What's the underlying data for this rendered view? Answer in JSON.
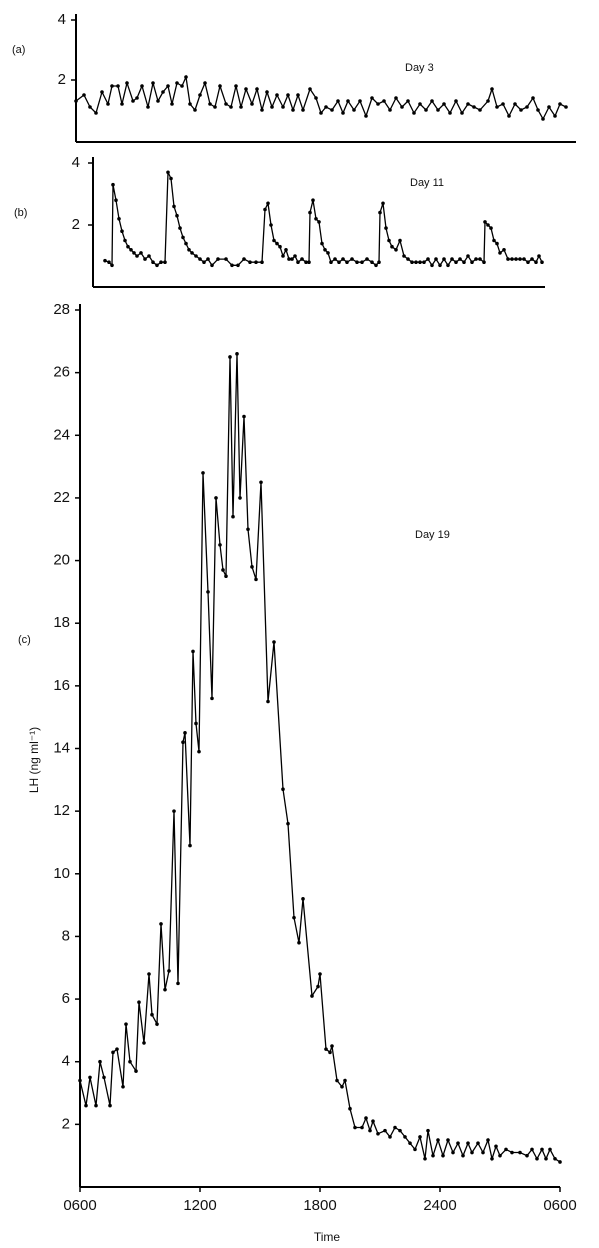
{
  "chart_data": [
    {
      "type": "line",
      "panel_label": "(a)",
      "annotation": "Day 3",
      "color": "#000000",
      "markers": true,
      "xlim": [
        6,
        31
      ],
      "ylim": [
        0,
        4
      ],
      "yticks": [
        2,
        4
      ],
      "x": [
        6.0,
        6.4,
        6.7,
        7.0,
        7.3,
        7.6,
        7.8,
        8.1,
        8.3,
        8.55,
        8.85,
        9.05,
        9.3,
        9.6,
        9.85,
        10.1,
        10.35,
        10.6,
        10.8,
        11.05,
        11.3,
        11.5,
        11.7,
        11.95,
        12.2,
        12.45,
        12.7,
        12.95,
        13.2,
        13.5,
        13.75,
        14.0,
        14.25,
        14.5,
        14.8,
        15.05,
        15.3,
        15.55,
        15.8,
        16.05,
        16.35,
        16.6,
        16.85,
        17.1,
        17.35,
        17.7,
        18.0,
        18.25,
        18.5,
        18.8,
        19.1,
        19.35,
        19.6,
        19.9,
        20.2,
        20.5,
        20.8,
        21.1,
        21.4,
        21.7,
        22.0,
        22.3,
        22.6,
        22.9,
        23.2,
        23.5,
        23.8,
        24.1,
        24.4,
        24.7,
        25.0,
        25.3,
        25.6,
        25.9,
        26.2,
        26.6,
        26.8,
        27.05,
        27.35,
        27.65,
        27.95,
        28.25,
        28.55,
        28.85,
        29.1,
        29.35,
        29.65,
        29.95,
        30.2,
        30.5
      ],
      "values": [
        1.3,
        1.5,
        1.1,
        0.9,
        1.6,
        1.2,
        1.8,
        1.8,
        1.2,
        1.9,
        1.3,
        1.4,
        1.8,
        1.1,
        1.9,
        1.3,
        1.6,
        1.8,
        1.2,
        1.9,
        1.8,
        2.1,
        1.2,
        1.0,
        1.5,
        1.9,
        1.2,
        1.1,
        1.8,
        1.2,
        1.1,
        1.8,
        1.1,
        1.7,
        1.2,
        1.7,
        1.0,
        1.6,
        1.1,
        1.5,
        1.1,
        1.5,
        1.0,
        1.5,
        1.0,
        1.7,
        1.4,
        0.9,
        1.1,
        1.0,
        1.3,
        0.9,
        1.3,
        1.0,
        1.3,
        0.8,
        1.4,
        1.2,
        1.3,
        1.0,
        1.4,
        1.1,
        1.3,
        0.9,
        1.2,
        1.0,
        1.3,
        1.0,
        1.2,
        0.9,
        1.3,
        0.9,
        1.2,
        1.1,
        1.0,
        1.3,
        1.7,
        1.1,
        1.2,
        0.8,
        1.2,
        1.0,
        1.1,
        1.4,
        1.0,
        0.7,
        1.1,
        0.8,
        1.2,
        1.1
      ]
    },
    {
      "type": "line",
      "panel_label": "(b)",
      "annotation": "Day 11",
      "color": "#000000",
      "markers": true,
      "xlim": [
        6,
        28.6
      ],
      "ylim": [
        0,
        4
      ],
      "yticks": [
        2,
        4
      ],
      "x": [
        6.6,
        6.8,
        6.95,
        7.0,
        7.15,
        7.3,
        7.45,
        7.6,
        7.75,
        7.9,
        8.05,
        8.2,
        8.4,
        8.6,
        8.8,
        9.0,
        9.2,
        9.4,
        9.6,
        9.75,
        9.9,
        10.05,
        10.2,
        10.35,
        10.5,
        10.65,
        10.8,
        10.95,
        11.15,
        11.35,
        11.55,
        11.75,
        11.95,
        12.25,
        12.65,
        12.95,
        13.25,
        13.55,
        13.85,
        14.15,
        14.45,
        14.6,
        14.75,
        14.9,
        15.05,
        15.2,
        15.35,
        15.5,
        15.65,
        15.8,
        15.95,
        16.1,
        16.25,
        16.45,
        16.65,
        16.8,
        16.85,
        17.0,
        17.15,
        17.3,
        17.45,
        17.6,
        17.75,
        17.9,
        18.1,
        18.3,
        18.5,
        18.7,
        18.95,
        19.2,
        19.45,
        19.7,
        19.95,
        20.15,
        20.3,
        20.35,
        20.5,
        20.65,
        20.8,
        20.95,
        21.15,
        21.35,
        21.55,
        21.75,
        21.95,
        22.15,
        22.35,
        22.55,
        22.75,
        22.95,
        23.15,
        23.35,
        23.55,
        23.75,
        23.95,
        24.15,
        24.35,
        24.55,
        24.75,
        24.95,
        25.15,
        25.35,
        25.55,
        25.6,
        25.75,
        25.9,
        26.05,
        26.2,
        26.35,
        26.55,
        26.75,
        26.95,
        27.15,
        27.35,
        27.55,
        27.75,
        27.95,
        28.15,
        28.3,
        28.45
      ],
      "values": [
        0.85,
        0.8,
        0.7,
        3.3,
        2.8,
        2.2,
        1.8,
        1.5,
        1.3,
        1.2,
        1.1,
        1.0,
        1.1,
        0.9,
        1.0,
        0.8,
        0.7,
        0.8,
        0.8,
        3.7,
        3.5,
        2.6,
        2.3,
        1.9,
        1.6,
        1.4,
        1.2,
        1.1,
        1.0,
        0.9,
        0.8,
        0.9,
        0.7,
        0.9,
        0.9,
        0.7,
        0.7,
        0.9,
        0.8,
        0.8,
        0.8,
        2.5,
        2.7,
        2.0,
        1.5,
        1.4,
        1.3,
        1.0,
        1.2,
        0.9,
        0.9,
        1.0,
        0.8,
        0.9,
        0.8,
        0.8,
        2.4,
        2.8,
        2.2,
        2.1,
        1.4,
        1.2,
        1.1,
        0.8,
        0.9,
        0.8,
        0.9,
        0.8,
        0.9,
        0.8,
        0.8,
        0.9,
        0.8,
        0.7,
        0.8,
        2.4,
        2.7,
        1.9,
        1.5,
        1.3,
        1.2,
        1.5,
        1.0,
        0.9,
        0.8,
        0.8,
        0.8,
        0.8,
        0.9,
        0.7,
        0.9,
        0.7,
        0.9,
        0.7,
        0.9,
        0.8,
        0.9,
        0.8,
        1.0,
        0.8,
        0.9,
        0.9,
        0.8,
        2.1,
        2.0,
        1.9,
        1.5,
        1.4,
        1.1,
        1.2,
        0.9,
        0.9,
        0.9,
        0.9,
        0.9,
        0.8,
        0.9,
        0.8,
        1.0,
        0.8
      ]
    },
    {
      "type": "line",
      "panel_label": "(c)",
      "annotation": "Day 19",
      "color": "#000000",
      "markers": true,
      "ylabel": "LH (ng ml⁻¹)",
      "xlabel": "Time",
      "xlim": [
        6,
        30
      ],
      "ylim": [
        0,
        28
      ],
      "yticks": [
        2,
        4,
        6,
        8,
        10,
        12,
        14,
        16,
        18,
        20,
        22,
        24,
        26,
        28
      ],
      "xticks": [
        {
          "value": 6,
          "label": "0600"
        },
        {
          "value": 12,
          "label": "1200"
        },
        {
          "value": 18,
          "label": "1800"
        },
        {
          "value": 24,
          "label": "2400"
        },
        {
          "value": 30,
          "label": "0600"
        }
      ],
      "x": [
        6.0,
        6.3,
        6.5,
        6.8,
        7.0,
        7.2,
        7.5,
        7.65,
        7.85,
        8.15,
        8.3,
        8.5,
        8.8,
        8.95,
        9.2,
        9.45,
        9.6,
        9.85,
        10.05,
        10.25,
        10.45,
        10.7,
        10.9,
        11.15,
        11.25,
        11.5,
        11.65,
        11.8,
        11.95,
        12.15,
        12.4,
        12.6,
        12.8,
        13.0,
        13.15,
        13.3,
        13.5,
        13.65,
        13.85,
        14.0,
        14.2,
        14.4,
        14.6,
        14.8,
        15.05,
        15.4,
        15.7,
        16.15,
        16.4,
        16.7,
        16.95,
        17.15,
        17.6,
        17.9,
        18.0,
        18.3,
        18.5,
        18.6,
        18.85,
        19.1,
        19.25,
        19.5,
        19.75,
        20.1,
        20.3,
        20.5,
        20.65,
        20.9,
        21.25,
        21.5,
        21.75,
        22.0,
        22.25,
        22.5,
        22.75,
        23.0,
        23.25,
        23.4,
        23.65,
        23.9,
        24.15,
        24.4,
        24.65,
        24.9,
        25.15,
        25.4,
        25.6,
        25.9,
        26.15,
        26.4,
        26.6,
        26.8,
        27.0,
        27.3,
        27.6,
        28.0,
        28.35,
        28.6,
        28.85,
        29.1,
        29.3,
        29.5,
        29.75,
        30.0
      ],
      "values": [
        3.4,
        2.6,
        3.5,
        2.6,
        4.0,
        3.5,
        2.6,
        4.3,
        4.4,
        3.2,
        5.2,
        4.0,
        3.7,
        5.9,
        4.6,
        6.8,
        5.5,
        5.2,
        8.4,
        6.3,
        6.9,
        12.0,
        6.5,
        14.2,
        14.5,
        10.9,
        17.1,
        14.8,
        13.9,
        22.8,
        19.0,
        15.6,
        22.0,
        20.5,
        19.7,
        19.5,
        26.5,
        21.4,
        26.6,
        22.0,
        24.6,
        21.0,
        19.8,
        19.4,
        22.5,
        15.5,
        17.4,
        12.7,
        11.6,
        8.6,
        7.8,
        9.2,
        6.1,
        6.4,
        6.8,
        4.4,
        4.3,
        4.5,
        3.4,
        3.2,
        3.4,
        2.5,
        1.9,
        1.9,
        2.2,
        1.8,
        2.1,
        1.7,
        1.8,
        1.6,
        1.9,
        1.8,
        1.6,
        1.4,
        1.2,
        1.6,
        0.9,
        1.8,
        1.0,
        1.5,
        1.0,
        1.5,
        1.1,
        1.4,
        1.0,
        1.4,
        1.1,
        1.4,
        1.1,
        1.5,
        0.9,
        1.3,
        1.0,
        1.2,
        1.1,
        1.1,
        1.0,
        1.2,
        0.9,
        1.2,
        0.9,
        1.2,
        0.9,
        0.8
      ]
    }
  ]
}
